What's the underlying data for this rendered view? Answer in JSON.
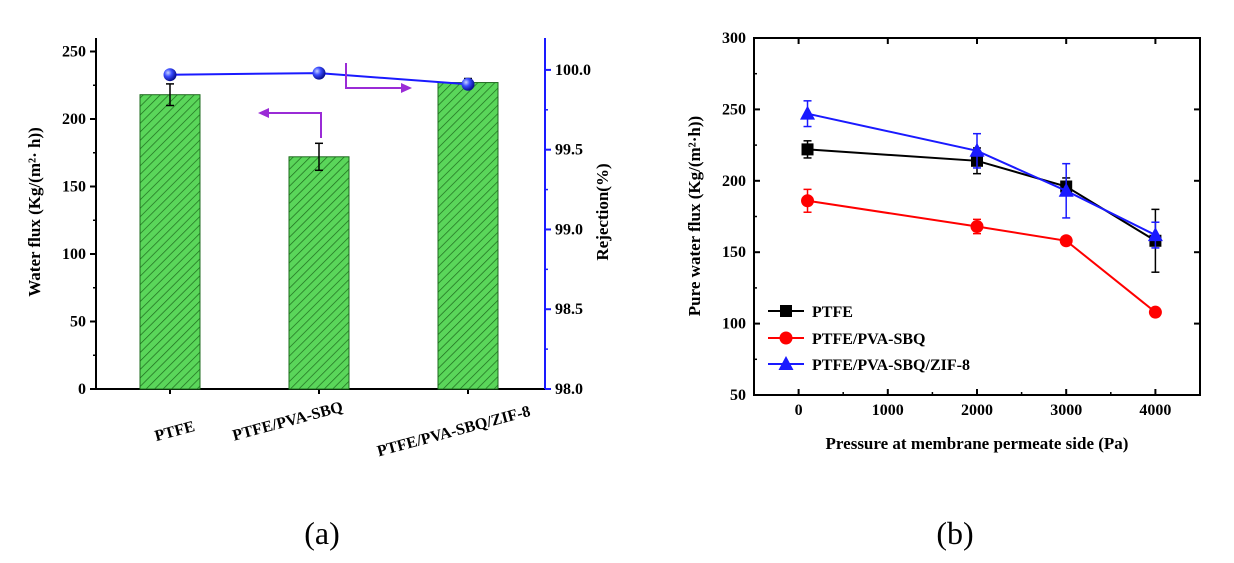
{
  "chart_data": [
    {
      "type": "bar",
      "panel_label": "(a)",
      "categories": [
        "PTFE",
        "PTFE/PVA-SBQ",
        "PTFE/PVA-SBQ/ZIF-8"
      ],
      "series": [
        {
          "name": "Water flux",
          "axis": "left",
          "values": [
            218,
            172,
            227
          ],
          "errors": [
            8,
            10,
            3
          ],
          "color": "#5ad65a"
        },
        {
          "name": "Rejection",
          "axis": "right",
          "type": "line",
          "values": [
            99.97,
            99.98,
            99.91
          ],
          "color": "#1a1aff"
        }
      ],
      "ylabel": "Water flux (Kg/(m²· h))",
      "ylabel2": "Rejection(%)",
      "ylim": [
        0,
        260
      ],
      "y_ticks": [
        "0",
        "50",
        "100",
        "150",
        "200",
        "250"
      ],
      "ylim2": [
        98.0,
        100.2
      ],
      "y2_ticks": [
        "98.0",
        "98.5",
        "99.0",
        "99.5",
        "100.0"
      ],
      "annotations": [
        "arrow toward left axis",
        "arrow toward right axis"
      ]
    },
    {
      "type": "line",
      "panel_label": "(b)",
      "xlabel": "Pressure at membrane permeate side (Pa)",
      "ylabel": "Pure water flux (Kg/(m²·h))",
      "xlim": [
        -500,
        4500
      ],
      "ylim": [
        50,
        300
      ],
      "x_ticks": [
        "0",
        "1000",
        "2000",
        "3000",
        "4000"
      ],
      "y_ticks": [
        "50",
        "100",
        "150",
        "200",
        "250",
        "300"
      ],
      "legend_position": "bottom-left",
      "series": [
        {
          "name": "PTFE",
          "marker": "square",
          "color": "#000000",
          "x": [
            100,
            2000,
            3000,
            4000
          ],
          "y": [
            222,
            214,
            196,
            158
          ],
          "errors": [
            6,
            9,
            6,
            22
          ]
        },
        {
          "name": "PTFE/PVA-SBQ",
          "marker": "circle",
          "color": "#ff0000",
          "x": [
            100,
            2000,
            3000,
            4000
          ],
          "y": [
            186,
            168,
            158,
            108
          ],
          "errors": [
            8,
            5,
            2,
            2
          ]
        },
        {
          "name": "PTFE/PVA-SBQ/ZIF-8",
          "marker": "triangle",
          "color": "#1a1aff",
          "x": [
            100,
            2000,
            3000,
            4000
          ],
          "y": [
            247,
            221,
            193,
            162
          ],
          "errors": [
            9,
            12,
            19,
            9
          ]
        }
      ]
    }
  ]
}
